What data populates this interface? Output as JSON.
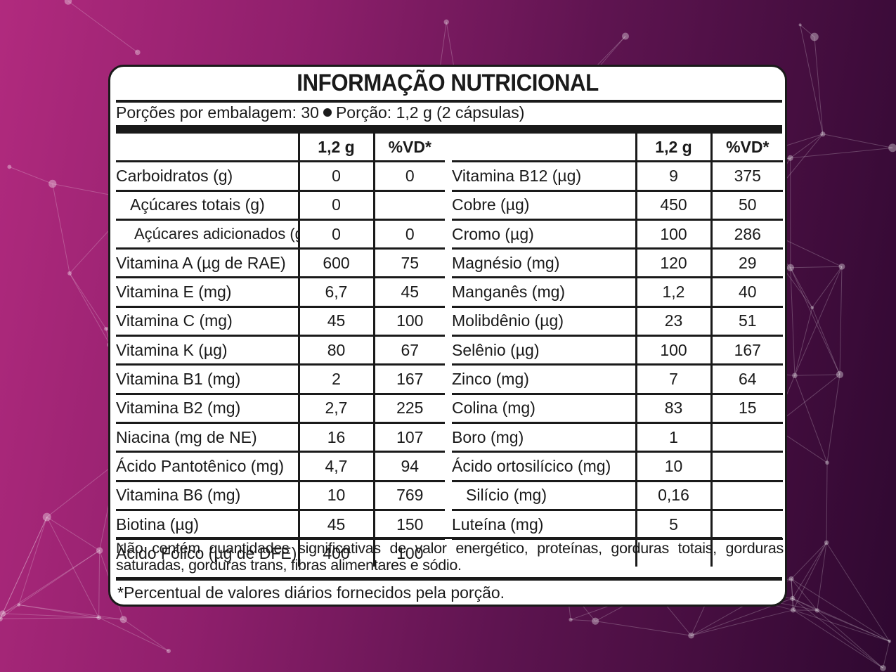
{
  "title": "INFORMAÇÃO NUTRICIONAL",
  "portion": {
    "servings": "Porções por embalagem: 30",
    "portion_size": "Porção: 1,2 g (2 cápsulas)"
  },
  "headers": {
    "amount": "1,2 g",
    "dv": "%VD*"
  },
  "left_rows": [
    {
      "name": "Carboidratos (g)",
      "amount": "0",
      "dv": "0"
    },
    {
      "name": "Açúcares totais (g)",
      "amount": "0",
      "dv": ""
    },
    {
      "name": "Açúcares adicionados (g)",
      "amount": "0",
      "dv": "0"
    },
    {
      "name": "Vitamina A (µg de RAE)",
      "amount": "600",
      "dv": "75"
    },
    {
      "name": "Vitamina E (mg)",
      "amount": "6,7",
      "dv": "45"
    },
    {
      "name": "Vitamina C (mg)",
      "amount": "45",
      "dv": "100"
    },
    {
      "name": "Vitamina K (µg)",
      "amount": "80",
      "dv": "67"
    },
    {
      "name": "Vitamina B1 (mg)",
      "amount": "2",
      "dv": "167"
    },
    {
      "name": "Vitamina B2 (mg)",
      "amount": "2,7",
      "dv": "225"
    },
    {
      "name": "Niacina (mg de NE)",
      "amount": "16",
      "dv": "107"
    },
    {
      "name": "Ácido Pantotênico (mg)",
      "amount": "4,7",
      "dv": "94"
    },
    {
      "name": "Vitamina B6 (mg)",
      "amount": "10",
      "dv": "769"
    },
    {
      "name": "Biotina (µg)",
      "amount": "45",
      "dv": "150"
    },
    {
      "name": "Ácido Fólico (µg de DFE)",
      "amount": "400",
      "dv": "100"
    }
  ],
  "right_rows": [
    {
      "name": "Vitamina B12 (µg)",
      "amount": "9",
      "dv": "375"
    },
    {
      "name": "Cobre (µg)",
      "amount": "450",
      "dv": "50"
    },
    {
      "name": "Cromo (µg)",
      "amount": "100",
      "dv": "286"
    },
    {
      "name": "Magnésio (mg)",
      "amount": "120",
      "dv": "29"
    },
    {
      "name": "Manganês (mg)",
      "amount": "1,2",
      "dv": "40"
    },
    {
      "name": "Molibdênio (µg)",
      "amount": "23",
      "dv": "51"
    },
    {
      "name": "Selênio (µg)",
      "amount": "100",
      "dv": "167"
    },
    {
      "name": "Zinco (mg)",
      "amount": "7",
      "dv": "64"
    },
    {
      "name": "Colina (mg)",
      "amount": "83",
      "dv": "15"
    },
    {
      "name": "Boro (mg)",
      "amount": "1",
      "dv": ""
    },
    {
      "name": "Ácido ortosilícico (mg)",
      "amount": "10",
      "dv": ""
    },
    {
      "name": "Silício (mg)",
      "amount": "0,16",
      "dv": ""
    },
    {
      "name": "Luteína (mg)",
      "amount": "5",
      "dv": ""
    },
    {
      "name": "",
      "amount": "",
      "dv": ""
    }
  ],
  "note": "Não contém quantidades significativas de valor energético, proteínas, gorduras totais, gorduras saturadas, gorduras trans, fibras alimentares e sódio.",
  "footnote": "*Percentual de valores diários fornecidos pela porção.",
  "colors": {
    "bg_left": "#b12a7e",
    "bg_right": "#2e0830",
    "ink": "#1a1a1a",
    "panel": "#ffffff"
  }
}
